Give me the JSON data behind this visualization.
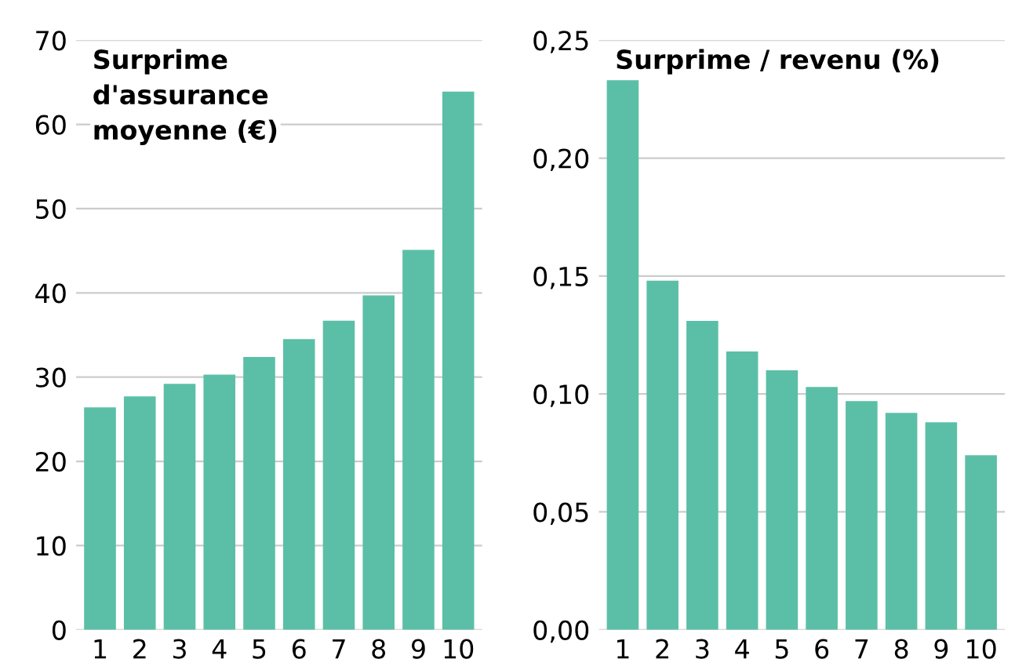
{
  "chart_data": [
    {
      "type": "bar",
      "title": "Surprime\nd'assurance\nmoyenne (€)",
      "categories": [
        "1",
        "2",
        "3",
        "4",
        "5",
        "6",
        "7",
        "8",
        "9",
        "10"
      ],
      "values": [
        26.4,
        27.7,
        29.2,
        30.3,
        32.4,
        34.5,
        36.7,
        39.7,
        45.1,
        63.9
      ],
      "color": "#5bbfa7",
      "ylim": [
        0,
        70
      ],
      "yticks": [
        0,
        10,
        20,
        30,
        40,
        50,
        60,
        70
      ],
      "grid": "y"
    },
    {
      "type": "bar",
      "title": "Surprime / revenu (%)",
      "categories": [
        "1",
        "2",
        "3",
        "4",
        "5",
        "6",
        "7",
        "8",
        "9",
        "10"
      ],
      "values": [
        0.233,
        0.148,
        0.131,
        0.118,
        0.11,
        0.103,
        0.097,
        0.092,
        0.088,
        0.074
      ],
      "color": "#5bbfa7",
      "ylim": [
        0,
        0.25
      ],
      "yticks": [
        {
          "value": 0,
          "label": "0,00"
        },
        {
          "value": 0.05,
          "label": "0,05"
        },
        {
          "value": 0.1,
          "label": "0,10"
        },
        {
          "value": 0.15,
          "label": "0,15"
        },
        {
          "value": 0.2,
          "label": "0,20"
        },
        {
          "value": 0.25,
          "label": "0,25"
        }
      ],
      "grid": "y"
    }
  ]
}
